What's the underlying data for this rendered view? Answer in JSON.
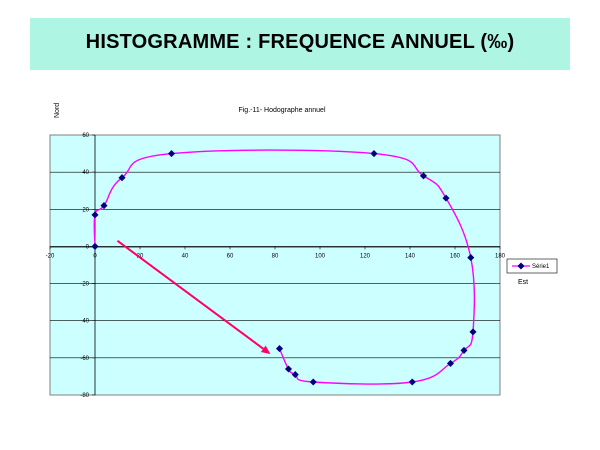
{
  "header": {
    "title": "HISTOGRAMME  : FREQUENCE  ANNUEL  (‰)"
  },
  "chart_data": {
    "type": "line",
    "title": "Fig.-11-  Hodographe annuel",
    "xlabel": "Est",
    "ylabel": "Nord",
    "xlim": [
      -20,
      180
    ],
    "ylim": [
      -80,
      60
    ],
    "xticks": [
      -20,
      0,
      20,
      40,
      60,
      80,
      100,
      120,
      140,
      160,
      180
    ],
    "yticks": [
      -80,
      -60,
      -40,
      -20,
      0,
      20,
      40,
      60
    ],
    "grid": "horizontal",
    "legend": "right",
    "series": [
      {
        "name": "Série1",
        "color": "#ff00ff",
        "marker_color": "#000080",
        "points": [
          [
            0,
            0
          ],
          [
            0,
            17
          ],
          [
            4,
            22
          ],
          [
            12,
            37
          ],
          [
            34,
            50
          ],
          [
            124,
            50
          ],
          [
            146,
            38
          ],
          [
            156,
            26
          ],
          [
            167,
            -6
          ],
          [
            168,
            -46
          ],
          [
            164,
            -56
          ],
          [
            158,
            -63
          ],
          [
            141,
            -73
          ],
          [
            97,
            -73
          ],
          [
            89,
            -69
          ],
          [
            86,
            -66
          ],
          [
            82,
            -55
          ]
        ]
      }
    ],
    "annotation": {
      "type": "arrow",
      "color": "#ff0066",
      "from": [
        10,
        3
      ],
      "to": [
        78,
        -58
      ]
    }
  }
}
